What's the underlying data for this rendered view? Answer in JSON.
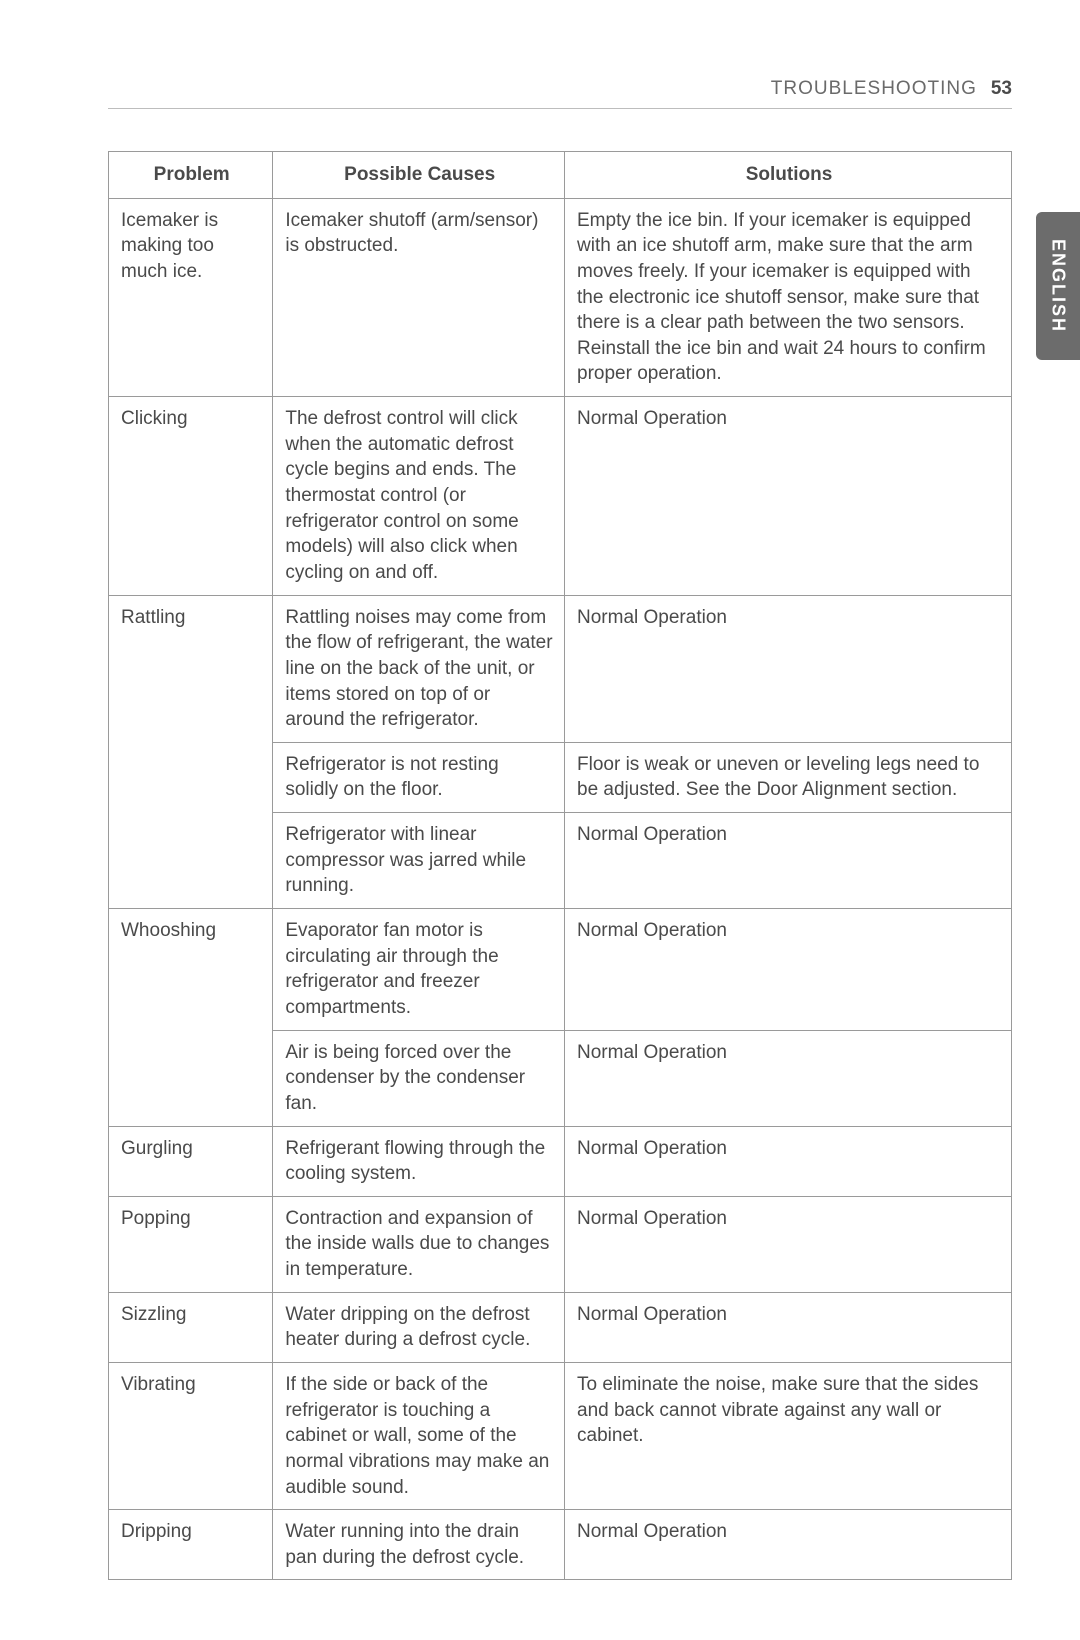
{
  "header": {
    "section_title": "TROUBLESHOOTING",
    "page_number": "53"
  },
  "side_tab": {
    "label": "ENGLISH"
  },
  "columns": {
    "problem": "Problem",
    "causes": "Possible Causes",
    "solutions": "Solutions"
  },
  "rows": [
    {
      "problem": "Icemaker is making too much ice.",
      "cause": "Icemaker shutoff (arm/sensor) is obstructed.",
      "solution": "Empty the ice bin. If your icemaker is equipped with an ice shutoff arm, make sure that the arm moves freely. If your icemaker is equipped with the electronic ice shutoff sensor, make sure that there is a clear path between the two sensors. Reinstall the ice bin and wait 24 hours to confirm proper operation."
    },
    {
      "problem": "Clicking",
      "cause": "The defrost control will click when the automatic defrost cycle begins and ends. The thermostat control (or refrigerator control on some models) will also click when cycling on and off.",
      "solution": "Normal Operation"
    },
    {
      "problem": "Rattling",
      "cause": "Rattling noises may come from the flow of refrigerant, the water line on the back of the unit, or items stored on top of or around the refrigerator.",
      "solution": "Normal Operation",
      "problem_rowspan": 3
    },
    {
      "cause": "Refrigerator is not resting solidly on the floor.",
      "solution": "Floor is weak or uneven or leveling legs need to be adjusted. See the Door Alignment section."
    },
    {
      "cause": "Refrigerator with linear compressor was jarred while running.",
      "solution": "Normal Operation"
    },
    {
      "problem": "Whooshing",
      "cause": "Evaporator fan motor is circulating air through the refrigerator and freezer compartments.",
      "solution": "Normal Operation",
      "problem_rowspan": 2
    },
    {
      "cause": "Air is being forced over the condenser by the condenser fan.",
      "solution": "Normal Operation"
    },
    {
      "problem": "Gurgling",
      "cause": "Refrigerant flowing through the cooling system.",
      "solution": "Normal Operation"
    },
    {
      "problem": "Popping",
      "cause": "Contraction and expansion of the inside walls due to changes in temperature.",
      "solution": "Normal Operation"
    },
    {
      "problem": "Sizzling",
      "cause": "Water dripping on the defrost heater during a defrost cycle.",
      "solution": "Normal Operation"
    },
    {
      "problem": "Vibrating",
      "cause": "If the side or back of the refrigerator is touching a cabinet or wall, some of the normal vibrations may make an audible sound.",
      "solution": "To eliminate the noise, make sure that the sides and back cannot vibrate against any wall or cabinet."
    },
    {
      "problem": "Dripping",
      "cause": "Water running into the drain pan during the defrost cycle.",
      "solution": "Normal Operation"
    }
  ]
}
